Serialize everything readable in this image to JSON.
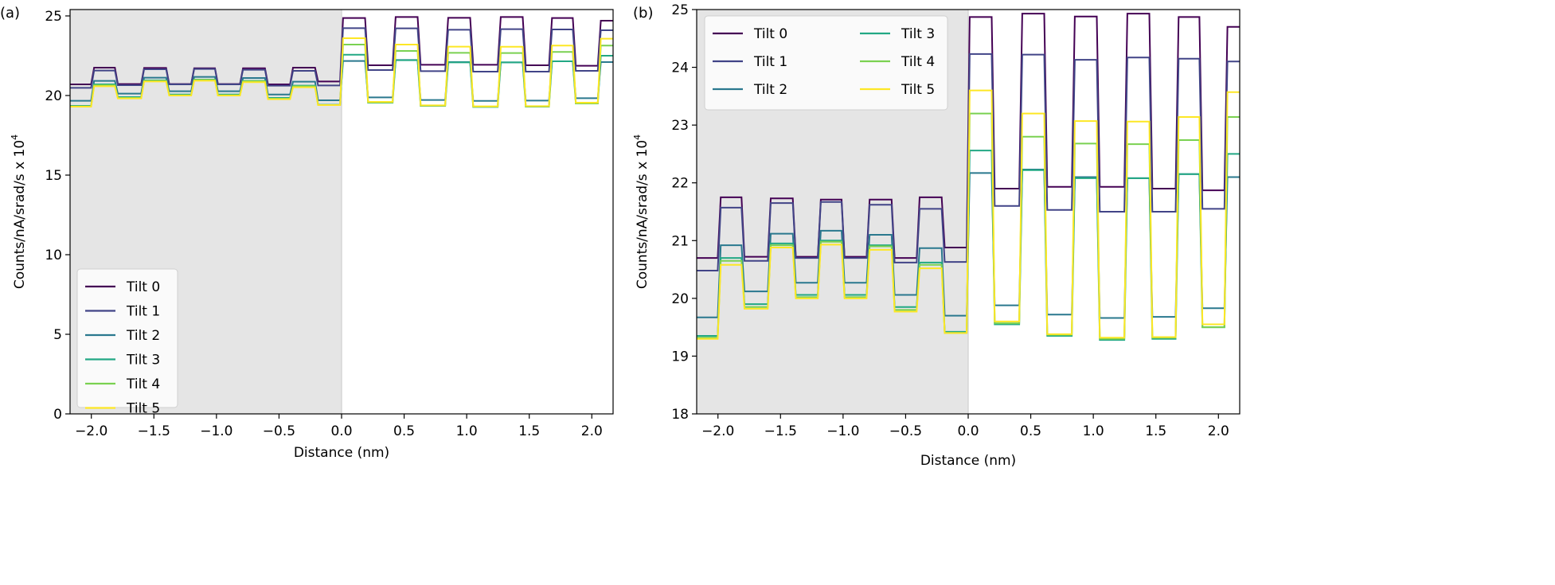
{
  "chart_data": [
    {
      "panel_label": "(a)",
      "type": "line",
      "xlabel": "Distance (nm)",
      "ylabel": "Counts/nA/srad/s x 10",
      "ylabel_exponent": "4",
      "xlim": [
        -2.17,
        2.17
      ],
      "ylim": [
        0,
        25.4
      ],
      "xticks": [
        "−2.0",
        "−1.5",
        "−1.0",
        "−0.5",
        "0.0",
        "0.5",
        "1.0",
        "1.5",
        "2.0"
      ],
      "xtick_values": [
        -2.0,
        -1.5,
        -1.0,
        -0.5,
        0.0,
        0.5,
        1.0,
        1.5,
        2.0
      ],
      "yticks": [
        "0",
        "5",
        "10",
        "15",
        "20",
        "25"
      ],
      "ytick_values": [
        0,
        5,
        10,
        15,
        20,
        25
      ],
      "shaded_region": [
        -2.17,
        0
      ],
      "shaded_color": "#e5e5e5",
      "legend_placement": "lower-left",
      "legend_columns": 1,
      "grid": false
    },
    {
      "panel_label": "(b)",
      "type": "line",
      "xlabel": "Distance (nm)",
      "ylabel": "Counts/nA/srad/s x 10",
      "ylabel_exponent": "4",
      "xlim": [
        -2.17,
        2.17
      ],
      "ylim": [
        18,
        25
      ],
      "xticks": [
        "−2.0",
        "−1.5",
        "−1.0",
        "−0.5",
        "0.0",
        "0.5",
        "1.0",
        "1.5",
        "2.0"
      ],
      "xtick_values": [
        -2.0,
        -1.5,
        -1.0,
        -0.5,
        0.0,
        0.5,
        1.0,
        1.5,
        2.0
      ],
      "yticks": [
        "18",
        "19",
        "20",
        "21",
        "22",
        "23",
        "24",
        "25"
      ],
      "ytick_values": [
        18,
        19,
        20,
        21,
        22,
        23,
        24,
        25
      ],
      "shaded_region": [
        -2.17,
        0
      ],
      "shaded_color": "#e5e5e5",
      "legend_placement": "upper-left",
      "legend_columns": 2,
      "grid": false
    }
  ],
  "segment_edges": [
    -2.17,
    -1.99,
    -1.8,
    -1.59,
    -1.39,
    -1.19,
    -1.0,
    -0.8,
    -0.6,
    -0.4,
    -0.2,
    0.0,
    0.2,
    0.42,
    0.62,
    0.84,
    1.04,
    1.26,
    1.46,
    1.67,
    1.86,
    2.06,
    2.17
  ],
  "series": [
    {
      "name": "Tilt 0",
      "color": "#440154",
      "values": [
        20.7,
        21.75,
        20.72,
        21.73,
        20.72,
        21.71,
        20.72,
        21.71,
        20.7,
        21.75,
        20.88,
        24.87,
        21.9,
        24.93,
        21.93,
        24.88,
        21.93,
        24.93,
        21.9,
        24.87,
        21.87,
        24.7
      ]
    },
    {
      "name": "Tilt 1",
      "color": "#414487",
      "values": [
        20.48,
        21.57,
        20.65,
        21.65,
        20.7,
        21.67,
        20.7,
        21.62,
        20.62,
        21.55,
        20.63,
        24.23,
        21.6,
        24.22,
        21.53,
        24.13,
        21.5,
        24.17,
        21.5,
        24.15,
        21.55,
        24.1
      ]
    },
    {
      "name": "Tilt 2",
      "color": "#2a788e",
      "values": [
        19.67,
        20.92,
        20.12,
        21.12,
        20.27,
        21.17,
        20.27,
        21.1,
        20.06,
        20.87,
        19.7,
        22.17,
        19.88,
        22.23,
        19.72,
        22.1,
        19.66,
        22.08,
        19.68,
        22.15,
        19.83,
        22.1
      ]
    },
    {
      "name": "Tilt 3",
      "color": "#22a884",
      "values": [
        19.35,
        20.7,
        19.9,
        20.95,
        20.06,
        21.0,
        20.06,
        20.92,
        19.85,
        20.62,
        19.42,
        22.56,
        19.55,
        22.22,
        19.35,
        22.08,
        19.28,
        22.08,
        19.3,
        22.15,
        19.5,
        22.5
      ]
    },
    {
      "name": "Tilt 4",
      "color": "#7ad151",
      "values": [
        19.32,
        20.65,
        19.85,
        20.92,
        20.02,
        20.98,
        20.02,
        20.9,
        19.8,
        20.58,
        19.4,
        23.2,
        19.57,
        22.8,
        19.37,
        22.68,
        19.3,
        22.67,
        19.32,
        22.74,
        19.5,
        23.14
      ]
    },
    {
      "name": "Tilt 5",
      "color": "#fde725",
      "values": [
        19.3,
        20.58,
        19.82,
        20.88,
        20.0,
        20.93,
        20.0,
        20.84,
        19.77,
        20.52,
        19.4,
        23.6,
        19.6,
        23.2,
        19.38,
        23.07,
        19.32,
        23.06,
        19.33,
        23.14,
        19.55,
        23.57
      ]
    }
  ]
}
